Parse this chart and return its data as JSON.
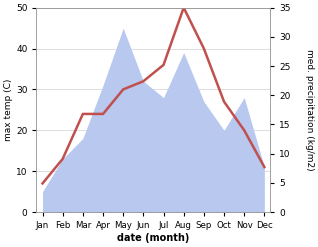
{
  "months": [
    "Jan",
    "Feb",
    "Mar",
    "Apr",
    "May",
    "Jun",
    "Jul",
    "Aug",
    "Sep",
    "Oct",
    "Nov",
    "Dec"
  ],
  "temperature": [
    7,
    13,
    24,
    24,
    30,
    32,
    36,
    50,
    40,
    27,
    20,
    11
  ],
  "precipitation_left_scale": [
    5,
    13,
    18,
    31,
    45,
    32,
    28,
    39,
    27,
    20,
    28,
    11
  ],
  "temp_color": "#c0504d",
  "precip_color": "#b8c8ee",
  "temp_ylim": [
    0,
    50
  ],
  "precip_ylim": [
    0,
    35
  ],
  "left_ylim": [
    0,
    50
  ],
  "xlabel": "date (month)",
  "ylabel_left": "max temp (C)",
  "ylabel_right": "med. precipitation (kg/m2)",
  "bg_color": "#ffffff",
  "grid_color": "#d0d0d0",
  "yticks_left": [
    0,
    10,
    20,
    30,
    40,
    50
  ],
  "yticks_right": [
    0,
    5,
    10,
    15,
    20,
    25,
    30,
    35
  ]
}
